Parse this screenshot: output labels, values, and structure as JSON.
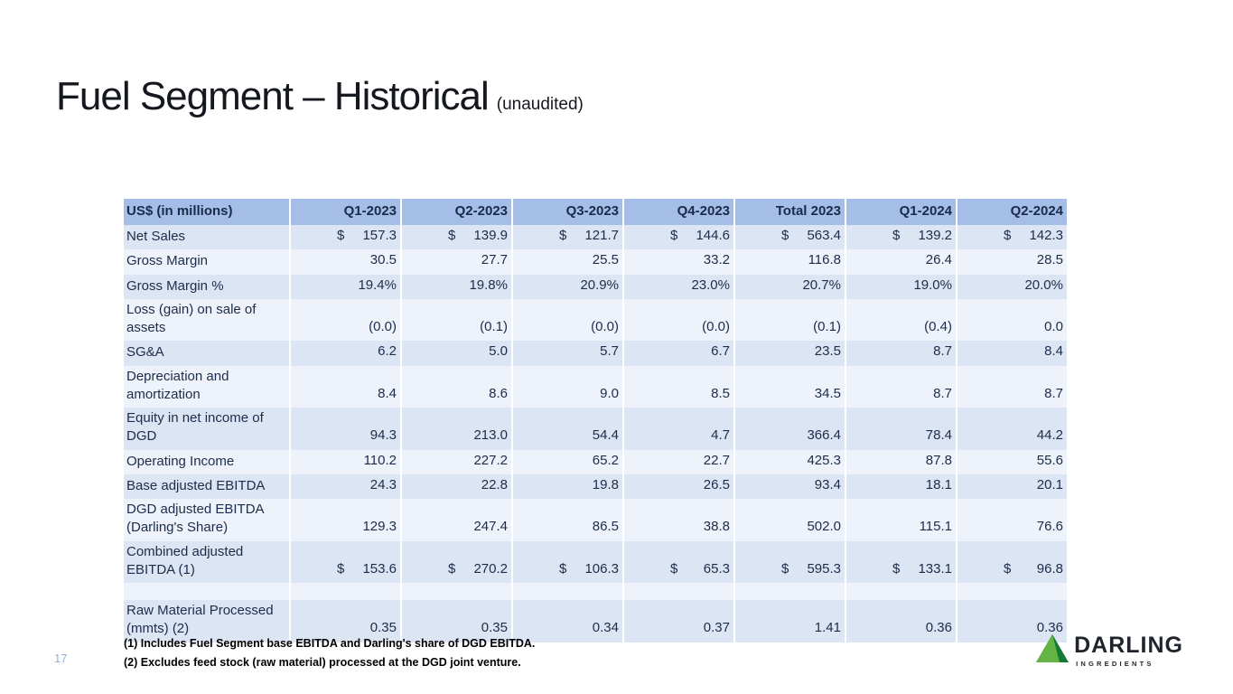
{
  "slide": {
    "title": "Fuel Segment – Historical",
    "title_suffix": "(unaudited)",
    "page_number": "17",
    "footnotes": [
      "(1) Includes Fuel Segment base EBITDA and Darling's share of DGD EBITDA.",
      "(2) Excludes feed stock (raw material) processed at the DGD joint venture."
    ],
    "logo": {
      "name": "DARLING",
      "subtext": "INGREDIENTS"
    }
  },
  "colors": {
    "header_bg": "#A5BEE8",
    "row_band_dark": "#DCE5F4",
    "row_band_light": "#EEF2FA",
    "table_text_navy": "#1D2C4A",
    "page_number_blue": "#8FB0DB",
    "logo_green_dark": "#157A33",
    "logo_green_light": "#63B345"
  },
  "table": {
    "header": [
      "US$ (in millions)",
      "Q1-2023",
      "Q2-2023",
      "Q3-2023",
      "Q4-2023",
      "Total 2023",
      "Q1-2024",
      "Q2-2024"
    ],
    "rows": [
      {
        "label": "Net Sales",
        "dollar": true,
        "values": [
          "157.3",
          "139.9",
          "121.7",
          "144.6",
          "563.4",
          "139.2",
          "142.3"
        ]
      },
      {
        "label": "Gross Margin",
        "dollar": false,
        "values": [
          "30.5",
          "27.7",
          "25.5",
          "33.2",
          "116.8",
          "26.4",
          "28.5"
        ]
      },
      {
        "label": "Gross Margin %",
        "dollar": false,
        "values": [
          "19.4%",
          "19.8%",
          "20.9%",
          "23.0%",
          "20.7%",
          "19.0%",
          "20.0%"
        ]
      },
      {
        "label": "Loss (gain) on sale of assets",
        "dollar": false,
        "values": [
          "(0.0)",
          "(0.1)",
          "(0.0)",
          "(0.0)",
          "(0.1)",
          "(0.4)",
          "0.0"
        ]
      },
      {
        "label": "SG&A",
        "dollar": false,
        "values": [
          "6.2",
          "5.0",
          "5.7",
          "6.7",
          "23.5",
          "8.7",
          "8.4"
        ]
      },
      {
        "label": "Depreciation and amortization",
        "dollar": false,
        "values": [
          "8.4",
          "8.6",
          "9.0",
          "8.5",
          "34.5",
          "8.7",
          "8.7"
        ]
      },
      {
        "label": "Equity in net income of DGD",
        "dollar": false,
        "values": [
          "94.3",
          "213.0",
          "54.4",
          "4.7",
          "366.4",
          "78.4",
          "44.2"
        ]
      },
      {
        "label": "Operating Income",
        "dollar": false,
        "values": [
          "110.2",
          "227.2",
          "65.2",
          "22.7",
          "425.3",
          "87.8",
          "55.6"
        ]
      },
      {
        "label": "Base adjusted EBITDA",
        "dollar": false,
        "values": [
          "24.3",
          "22.8",
          "19.8",
          "26.5",
          "93.4",
          "18.1",
          "20.1"
        ]
      },
      {
        "label": "DGD adjusted EBITDA (Darling's Share)",
        "dollar": false,
        "values": [
          "129.3",
          "247.4",
          "86.5",
          "38.8",
          "502.0",
          "115.1",
          "76.6"
        ]
      },
      {
        "label": "Combined adjusted EBITDA (1)",
        "dollar": true,
        "values": [
          "153.6",
          "270.2",
          "106.3",
          "65.3",
          "595.3",
          "133.1",
          "96.8"
        ]
      },
      {
        "label": "",
        "dollar": false,
        "values": [
          "",
          "",
          "",
          "",
          "",
          "",
          ""
        ]
      },
      {
        "label": "Raw Material Processed (mmts) (2)",
        "dollar": false,
        "values": [
          "0.35",
          "0.35",
          "0.34",
          "0.37",
          "1.41",
          "0.36",
          "0.36"
        ]
      }
    ]
  }
}
